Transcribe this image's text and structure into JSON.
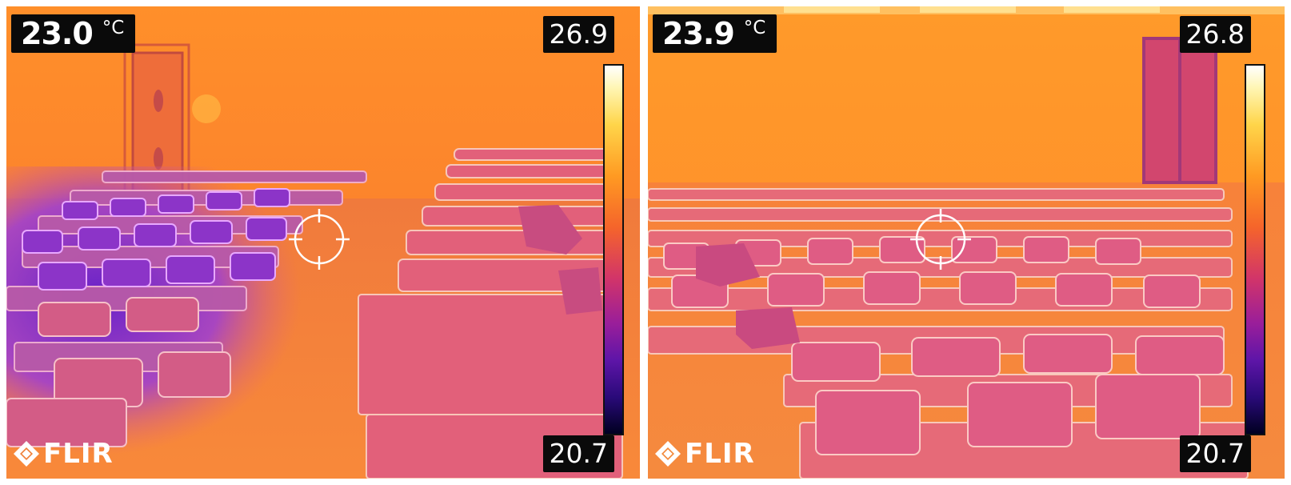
{
  "left_image": {
    "spot_temperature": "23.0",
    "unit": "°C",
    "scale_max": "26.9",
    "scale_min": "20.7",
    "logo_text": "FLIR",
    "icon": "flir-logo-icon"
  },
  "right_image": {
    "spot_temperature": "23.9",
    "unit": "°C",
    "scale_max": "26.8",
    "scale_min": "20.7",
    "logo_text": "FLIR",
    "icon": "flir-logo-icon"
  },
  "colors": {
    "hot": "#ff9a22",
    "warm": "#f37a33",
    "cool": "#8a3ad8",
    "cold": "#4b1ab0"
  }
}
